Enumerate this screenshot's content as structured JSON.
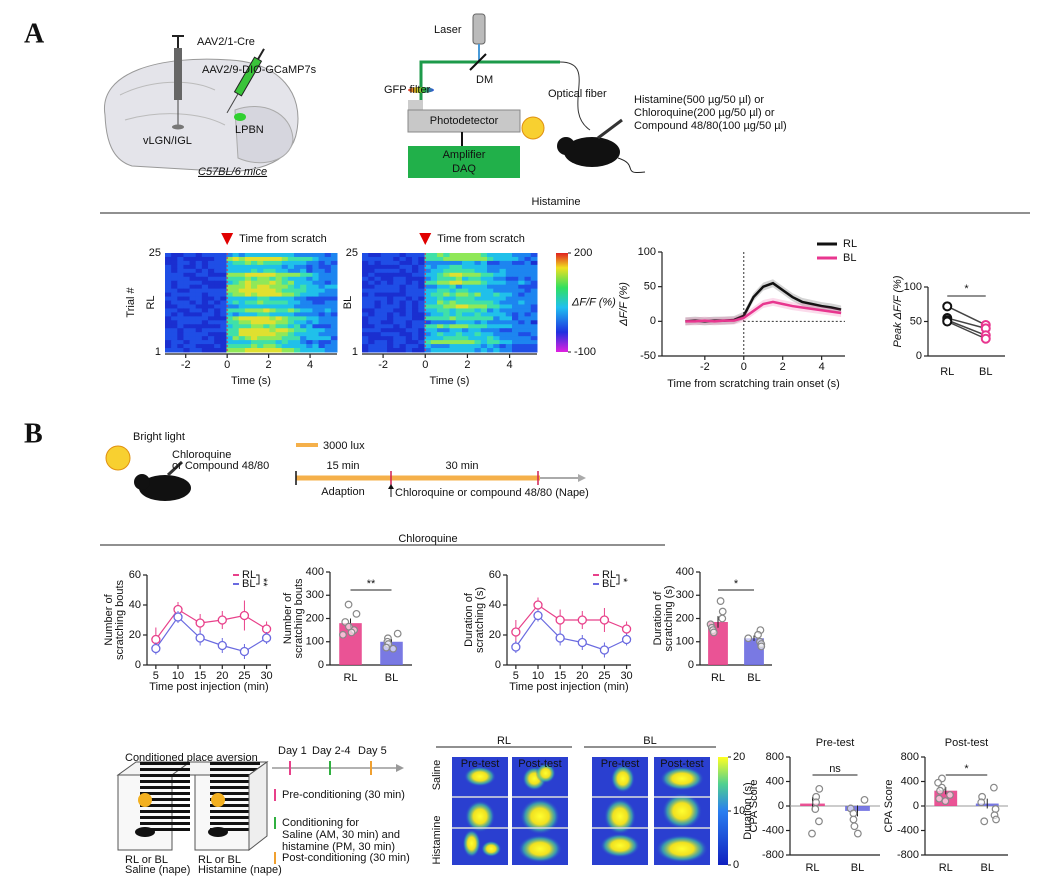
{
  "panel_a": {
    "label": "A",
    "virus_1": "AAV2/1-Cre",
    "virus_2": "AAV2/9-DIO-GCaMP7s",
    "region_1": "vLGN/IGL",
    "region_2": "LPBN",
    "strain": "C57BL/6 mice",
    "laser": "Laser",
    "dm": "DM",
    "filter": "GFP filter",
    "detector": "Photodetector",
    "amplifier": "Amplifier",
    "daq": "DAQ",
    "fiber": "Optical fiber",
    "drugs": [
      "Histamine(500 µg/50 µl) or",
      "Chloroquine(200 µg/50 µl) or",
      "Compound 48/80(100 µg/50 µl)"
    ],
    "section_title": "Histamine"
  },
  "panel_b": {
    "label": "B",
    "light": "Bright light",
    "drug_1": "Chloroquine",
    "drug_2": "or Compound 48/80",
    "lux": "3000 lux",
    "t1": "15 min",
    "t2": "30 min",
    "adaption": "Adaption",
    "injection": "Chloroquine or compound 48/80 (Nape)",
    "section_title": "Chloroquine",
    "cpa_title": "Conditioned place aversion",
    "box_1": [
      "RL or BL",
      "Saline (nape)"
    ],
    "box_2": [
      "RL or BL",
      "Histamine (nape)"
    ],
    "days": [
      "Day 1",
      "Day 2-4",
      "Day 5"
    ],
    "steps": [
      [
        "Pre-conditioning (30 min)"
      ],
      [
        "Conditioning for",
        "Saline (AM, 30 min) and",
        "histamine (PM, 30 min)"
      ],
      [
        "Post-conditioning (30 min)"
      ]
    ],
    "heat_groups": [
      "RL",
      "BL"
    ],
    "heat_cols": [
      "Pre-test",
      "Post-test",
      "Pre-test",
      "Post-test"
    ],
    "heat_rows": [
      "Saline",
      "Histamine"
    ],
    "heat_colorbar": {
      "label": "Duration (s)",
      "lim": [
        0,
        20
      ],
      "ticks": [
        0,
        10,
        20
      ]
    }
  },
  "plots": [
    {
      "type": "heatmap",
      "group": "RL",
      "ylabel": "Trial #",
      "marker_label": "Time from scratch",
      "xlabel": "Time (s)",
      "xlim": [
        -3,
        5.3
      ],
      "xticks": [
        -2,
        0,
        2,
        4
      ],
      "ylim": [
        1,
        25
      ],
      "yticks": [
        1,
        25
      ]
    },
    {
      "type": "heatmap",
      "group": "BL",
      "marker_label": "Time from scratch",
      "xlabel": "Time (s)",
      "xlim": [
        -3,
        5.3
      ],
      "xticks": [
        -2,
        0,
        2,
        4
      ],
      "ylim": [
        1,
        25
      ],
      "yticks": [
        1,
        25
      ],
      "colorbar": {
        "label": "ΔF/F (%)",
        "lim": [
          -100,
          200
        ],
        "ticks": [
          -100,
          200
        ]
      }
    },
    {
      "type": "line",
      "xlabel": "Time from scratching train onset (s)",
      "ylabel": "ΔF/F (%)",
      "xlim": [
        -4.2,
        5.2
      ],
      "xticks": [
        -2,
        0,
        2,
        4
      ],
      "ylim": [
        -50,
        100
      ],
      "yticks": [
        -50,
        0,
        50,
        100
      ],
      "x": [
        -3,
        -2.5,
        -2,
        -1.5,
        -1,
        -0.5,
        0,
        0.5,
        1,
        1.5,
        2,
        2.5,
        3,
        3.5,
        4,
        4.5,
        5
      ],
      "series": [
        {
          "name": "RL",
          "color": "#111111",
          "values": [
            0,
            1,
            0,
            1,
            1,
            2,
            8,
            35,
            50,
            55,
            45,
            35,
            28,
            25,
            22,
            20,
            17
          ]
        },
        {
          "name": "BL",
          "color": "#e8368f",
          "values": [
            0,
            0,
            1,
            0,
            1,
            1,
            5,
            15,
            25,
            28,
            25,
            22,
            20,
            18,
            16,
            14,
            12
          ]
        }
      ]
    },
    {
      "type": "paired",
      "ylabel": "Peak ΔF/F (%)",
      "categories": [
        "RL",
        "BL"
      ],
      "colors": [
        "#111111",
        "#e8368f"
      ],
      "ylim": [
        0,
        100
      ],
      "yticks": [
        0,
        50,
        100
      ],
      "pairs": [
        [
          72,
          45
        ],
        [
          55,
          40
        ],
        [
          52,
          30
        ],
        [
          50,
          25
        ]
      ],
      "significance": "*"
    },
    {
      "type": "line",
      "markers": true,
      "xlabel": "Time post injection (min)",
      "ylabel": [
        "Number of",
        "scratching bouts"
      ],
      "xlim": [
        3,
        31
      ],
      "xticks": [
        5,
        10,
        15,
        20,
        25,
        30
      ],
      "ylim": [
        0,
        60
      ],
      "yticks": [
        0,
        20,
        40,
        60
      ],
      "x": [
        5,
        10,
        15,
        20,
        25,
        30
      ],
      "series": [
        {
          "name": "RL",
          "color": "#e8408a",
          "values": [
            17,
            37,
            28,
            30,
            33,
            24
          ],
          "errors": [
            8,
            5,
            6,
            6,
            10,
            5
          ]
        },
        {
          "name": "BL",
          "color": "#6a6ae0",
          "values": [
            11,
            32,
            18,
            13,
            9,
            18
          ],
          "errors": [
            4,
            4,
            5,
            5,
            5,
            4
          ]
        }
      ],
      "significance": "**"
    },
    {
      "type": "bar",
      "ylabel": [
        "Number of",
        "scratching bouts"
      ],
      "categories": [
        "RL",
        "BL"
      ],
      "colors": [
        "#e8408a",
        "#6a6ae0"
      ],
      "values": [
        180,
        100
      ],
      "errors": [
        20,
        12
      ],
      "points": [
        [
          260,
          220,
          185,
          165,
          150,
          140,
          130
        ],
        [
          135,
          115,
          100,
          90,
          75,
          70
        ]
      ],
      "ylim": [
        0,
        400
      ],
      "yticks": [
        0,
        100,
        200,
        300,
        400
      ],
      "significance": "**"
    },
    {
      "type": "line",
      "markers": true,
      "xlabel": "Time post injection (min)",
      "ylabel": [
        "Duration of",
        "scratching (s)"
      ],
      "xlim": [
        3,
        31
      ],
      "xticks": [
        5,
        10,
        15,
        20,
        25,
        30
      ],
      "ylim": [
        0,
        60
      ],
      "yticks": [
        0,
        20,
        40,
        60
      ],
      "x": [
        5,
        10,
        15,
        20,
        25,
        30
      ],
      "series": [
        {
          "name": "RL",
          "color": "#e8408a",
          "values": [
            22,
            40,
            30,
            30,
            30,
            24
          ],
          "errors": [
            8,
            5,
            7,
            6,
            8,
            5
          ]
        },
        {
          "name": "BL",
          "color": "#6a6ae0",
          "values": [
            12,
            33,
            18,
            15,
            10,
            17
          ],
          "errors": [
            4,
            4,
            5,
            5,
            5,
            4
          ]
        }
      ],
      "significance": "*"
    },
    {
      "type": "bar",
      "ylabel": [
        "Duration of",
        "scratching (s)"
      ],
      "categories": [
        "RL",
        "BL"
      ],
      "colors": [
        "#e8408a",
        "#6a6ae0"
      ],
      "values": [
        185,
        115
      ],
      "errors": [
        25,
        12
      ],
      "points": [
        [
          275,
          230,
          200,
          175,
          160,
          150,
          140
        ],
        [
          150,
          130,
          115,
          100,
          90,
          80
        ]
      ],
      "ylim": [
        0,
        400
      ],
      "yticks": [
        0,
        100,
        200,
        300,
        400
      ],
      "significance": "*"
    },
    {
      "type": "bar",
      "title": "Pre-test",
      "ylabel": "CPA Score",
      "categories": [
        "RL",
        "BL"
      ],
      "colors": [
        "#e8408a",
        "#6a6ae0"
      ],
      "values": [
        40,
        -80
      ],
      "errors": [
        110,
        90
      ],
      "points": [
        [
          280,
          150,
          60,
          -50,
          -250,
          -450
        ],
        [
          100,
          -40,
          -120,
          -220,
          -330,
          -450
        ]
      ],
      "ylim": [
        -800,
        800
      ],
      "yticks": [
        -800,
        -400,
        0,
        400,
        800
      ],
      "significance": "ns"
    },
    {
      "type": "bar",
      "title": "Post-test",
      "ylabel": "CPA Score",
      "categories": [
        "RL",
        "BL"
      ],
      "colors": [
        "#e8408a",
        "#6a6ae0"
      ],
      "values": [
        250,
        40
      ],
      "errors": [
        60,
        80
      ],
      "points": [
        [
          450,
          380,
          300,
          250,
          180,
          120,
          80
        ],
        [
          300,
          150,
          60,
          -50,
          -150,
          -220,
          -250
        ]
      ],
      "ylim": [
        -800,
        800
      ],
      "yticks": [
        -800,
        -400,
        0,
        400,
        800
      ],
      "significance": "*"
    }
  ]
}
